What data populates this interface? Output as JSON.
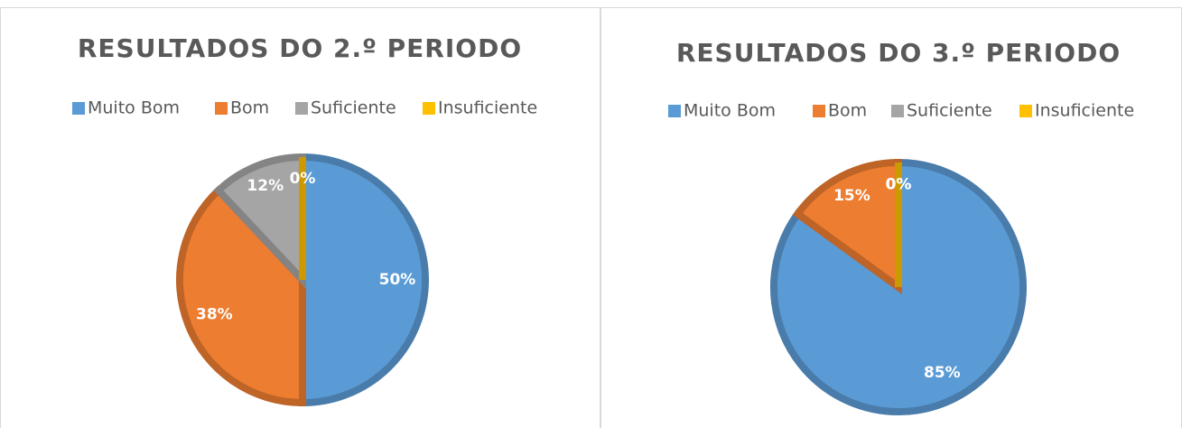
{
  "chart_data": [
    {
      "type": "pie",
      "title": "RESULTADOS DO 2.º PERIODO",
      "categories": [
        "Muito Bom",
        "Bom",
        "Suficiente",
        "Insuficiente"
      ],
      "values": [
        50,
        38,
        12,
        0
      ],
      "value_labels": [
        "50%",
        "38%",
        "12%",
        "0%"
      ],
      "colors": [
        "#5b9bd5",
        "#ed7d31",
        "#a5a5a5",
        "#ffc000"
      ],
      "legend": "top"
    },
    {
      "type": "pie",
      "title": "RESULTADOS DO 3.º PERIODO",
      "categories": [
        "Muito Bom",
        "Bom",
        "Suficiente",
        "Insuficiente"
      ],
      "values": [
        85,
        15,
        0,
        0
      ],
      "value_labels": [
        "85%",
        "15%",
        "0%",
        "0%"
      ],
      "colors": [
        "#5b9bd5",
        "#ed7d31",
        "#a5a5a5",
        "#ffc000"
      ],
      "legend": "top"
    }
  ]
}
